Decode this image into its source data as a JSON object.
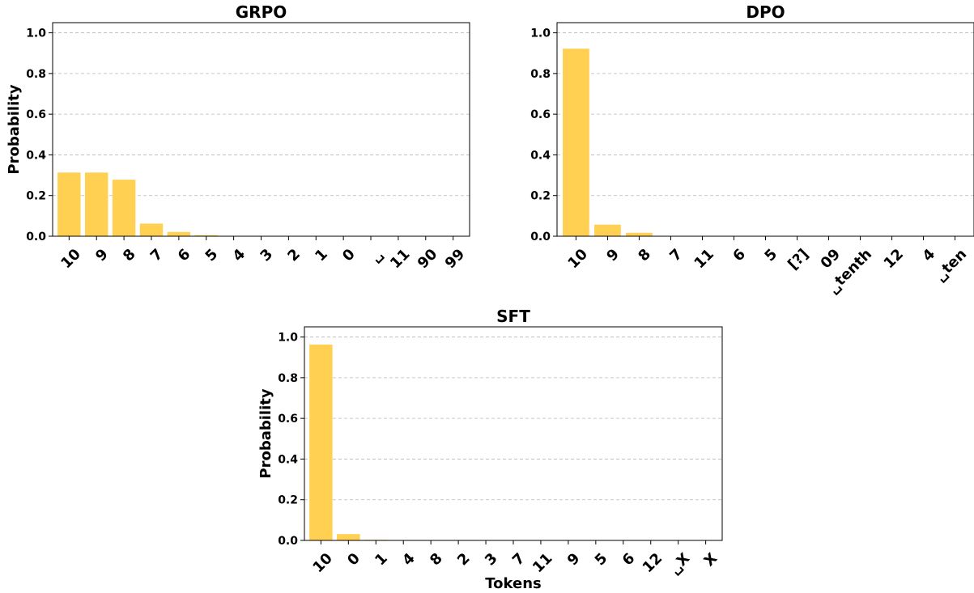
{
  "chart_data": [
    {
      "type": "bar",
      "title": "GRPO",
      "ylabel": "Probability",
      "xlabel": "",
      "ylim": [
        0,
        1.05
      ],
      "yticks": [
        "0.0",
        "0.2",
        "0.4",
        "0.6",
        "0.8",
        "1.0"
      ],
      "grid": true,
      "bar_color": "#ffd052",
      "categories": [
        "10",
        "9",
        "8",
        "7",
        "6",
        "5",
        "4",
        "3",
        "2",
        "1",
        "0",
        "␣",
        "11",
        "90",
        "99"
      ],
      "values": [
        0.313,
        0.313,
        0.278,
        0.062,
        0.021,
        0.005,
        0.002,
        0.001,
        0.001,
        0.001,
        0.0005,
        0.0005,
        0.0005,
        0.0003,
        0.0003
      ]
    },
    {
      "type": "bar",
      "title": "DPO",
      "ylabel": "",
      "xlabel": "",
      "ylim": [
        0,
        1.05
      ],
      "yticks": [
        "0.0",
        "0.2",
        "0.4",
        "0.6",
        "0.8",
        "1.0"
      ],
      "grid": true,
      "bar_color": "#ffd052",
      "categories": [
        "10",
        "9",
        "8",
        "7",
        "11",
        "6",
        "5",
        "[?]",
        "09",
        "␣tenth",
        "12",
        "4",
        "␣ten"
      ],
      "values": [
        0.922,
        0.057,
        0.017,
        0.001,
        0.0008,
        0.0006,
        0.0005,
        0.0004,
        0.0003,
        0.0003,
        0.0002,
        0.0002,
        0.0002
      ]
    },
    {
      "type": "bar",
      "title": "SFT",
      "ylabel": "Probability",
      "xlabel": "Tokens",
      "ylim": [
        0,
        1.05
      ],
      "yticks": [
        "0.0",
        "0.2",
        "0.4",
        "0.6",
        "0.8",
        "1.0"
      ],
      "grid": true,
      "bar_color": "#ffd052",
      "categories": [
        "10",
        "0",
        "1",
        "4",
        "8",
        "2",
        "3",
        "7",
        "11",
        "9",
        "5",
        "6",
        "12",
        "␣X",
        "X"
      ],
      "values": [
        0.963,
        0.031,
        0.003,
        0.002,
        0.001,
        0.001,
        0.0008,
        0.0006,
        0.0005,
        0.0004,
        0.0004,
        0.0003,
        0.0003,
        0.0002,
        0.0002
      ]
    }
  ]
}
